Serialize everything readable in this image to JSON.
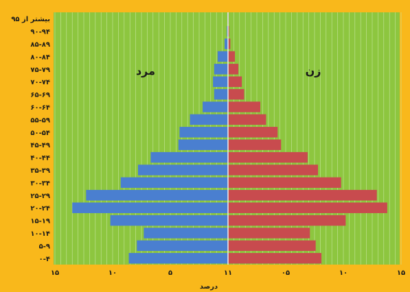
{
  "chart_data": {
    "type": "bar",
    "orientation": "horizontal-population-pyramid",
    "categories": [
      "۰-۴",
      "۵-۹",
      "۱۰-۱۴",
      "۱۵-۱۹",
      "۲۰-۲۴",
      "۲۵-۲۹",
      "۳۰-۳۴",
      "۳۵-۳۹",
      "۴۰-۴۴",
      "۴۵-۴۹",
      "۵۰-۵۴",
      "۵۵-۵۹",
      "۶۰-۶۴",
      "۶۵-۶۹",
      "۷۰-۷۴",
      "۷۵-۷۹",
      "۸۰-۸۴",
      "۸۵-۸۹",
      "۹۰-۹۴",
      "بیشتر از ۹۵"
    ],
    "series": [
      {
        "name": "مرد",
        "color": "#4a7fd0",
        "values": [
          8.6,
          7.9,
          7.3,
          10.2,
          13.5,
          12.3,
          9.3,
          7.8,
          6.7,
          4.3,
          4.2,
          3.3,
          2.2,
          1.2,
          1.3,
          1.2,
          0.9,
          0.3,
          0.1,
          0.05
        ]
      },
      {
        "name": "زن",
        "color": "#c84b4e",
        "values": [
          8.1,
          7.6,
          7.1,
          10.2,
          13.8,
          12.9,
          9.8,
          7.8,
          6.9,
          4.6,
          4.3,
          3.3,
          2.8,
          1.4,
          1.2,
          0.9,
          0.6,
          0.2,
          0.1,
          0.05
        ]
      }
    ],
    "x_tick_labels": [
      "۱۵",
      "۱۰",
      "۵",
      "۱۱",
      "۰۵",
      "۱۰",
      "۱۵"
    ],
    "xlim": [
      -15,
      15
    ],
    "xlabel": "درصد",
    "grid": true,
    "male_label": "مرد",
    "female_label": "زن",
    "colors": {
      "background": "#f9b81b",
      "plot": "#8dc63f",
      "grid": "#c8e6a0",
      "axis": "#f0f0f0"
    }
  }
}
